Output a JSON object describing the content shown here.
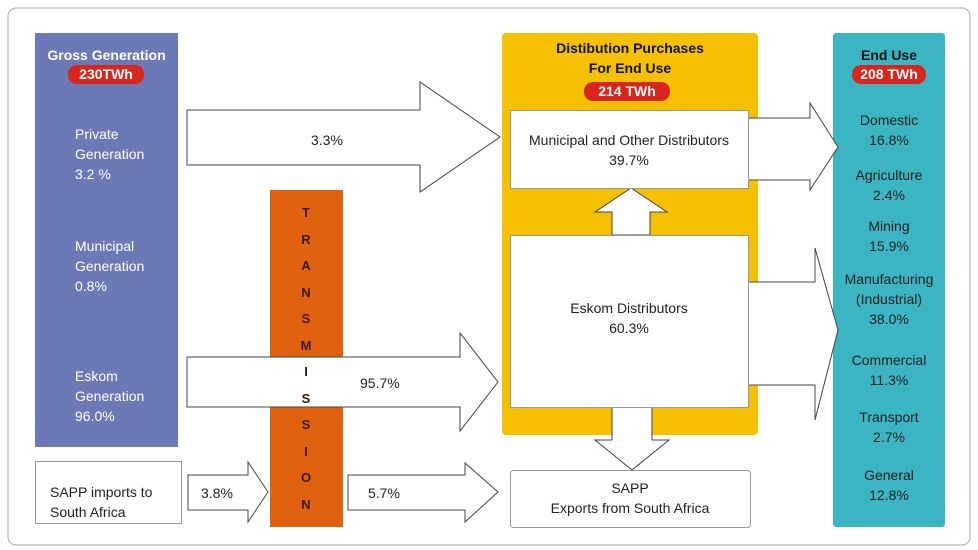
{
  "gross_generation": {
    "title": "Gross Generation",
    "total": "230TWh",
    "sources": [
      {
        "label": "Private\nGeneration",
        "share": "3.2  %"
      },
      {
        "label": "Municipal\nGeneration",
        "share": "0.8%"
      },
      {
        "label": "Eskom\nGeneration",
        "share": "96.0%"
      }
    ]
  },
  "imports": {
    "label": "SAPP imports to\nSouth Africa",
    "share": "3.8%"
  },
  "transmission": {
    "label": "TRANSMISSION"
  },
  "flows": {
    "private_to_municipal": "3.3%",
    "eskom_to_distributors": "95.7%",
    "exports": "5.7%"
  },
  "distribution": {
    "title": "Distibution Purchases\nFor End Use",
    "total": "214 TWh",
    "municipal": {
      "label": "Municipal and Other Distributors",
      "share": "39.7%"
    },
    "eskom": {
      "label": "Eskom Distributors",
      "share": "60.3%"
    }
  },
  "exports": {
    "label": "SAPP\nExports from South Africa"
  },
  "end_use": {
    "title": "End Use",
    "total": "208 TWh",
    "items": [
      {
        "label": "Domestic",
        "share": "16.8%"
      },
      {
        "label": "Agriculture",
        "share": "2.4%"
      },
      {
        "label": "Mining",
        "share": "15.9%"
      },
      {
        "label": "Manufacturing\n(Industrial)",
        "share": "38.0%"
      },
      {
        "label": "Commercial",
        "share": "11.3%"
      },
      {
        "label": "Transport",
        "share": "2.7%"
      },
      {
        "label": "General",
        "share": "12.8%"
      }
    ]
  }
}
